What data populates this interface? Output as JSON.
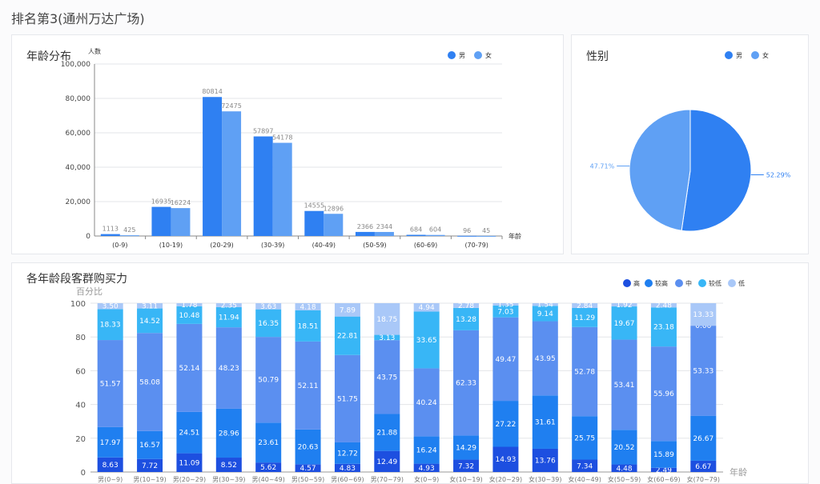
{
  "page": {
    "title": "排名第3(通州万达广场)"
  },
  "colors": {
    "male": "#2f80f2",
    "female": "#5fa0f4",
    "high": "#1d4fe0",
    "mid_high": "#1f7ff0",
    "mid": "#5b8ff0",
    "low_mid": "#38b6f6",
    "low": "#a9c8f8"
  },
  "chart_data": [
    {
      "id": "age",
      "type": "bar",
      "title": "年龄分布",
      "ylabel": "人数",
      "xlabel": "年龄",
      "ylim": [
        0,
        100000
      ],
      "yticks": [
        "0",
        "20,000",
        "40,000",
        "60,000",
        "80,000",
        "100,000"
      ],
      "categories": [
        "(0-9)",
        "(10-19)",
        "(20-29)",
        "(30-39)",
        "(40-49)",
        "(50-59)",
        "(60-69)",
        "(70-79)"
      ],
      "series": [
        {
          "name": "男",
          "values": [
            1113,
            16935,
            80814,
            57897,
            14555,
            2366,
            684,
            96
          ]
        },
        {
          "name": "女",
          "values": [
            425,
            16224,
            72475,
            54178,
            12896,
            2344,
            604,
            45
          ]
        }
      ],
      "legend": "top-right",
      "grid": true
    },
    {
      "id": "gender",
      "type": "pie",
      "title": "性别",
      "slices": [
        {
          "name": "男",
          "value": 52.29,
          "label": "52.29%"
        },
        {
          "name": "女",
          "value": 47.71,
          "label": "47.71%"
        }
      ],
      "legend": "top-right"
    },
    {
      "id": "power",
      "type": "bar",
      "stacked": true,
      "title": "各年龄段客群购买力",
      "ylabel": "百分比",
      "xlabel": "年龄",
      "ylim": [
        0,
        100
      ],
      "yticks": [
        "0",
        "20",
        "40",
        "60",
        "80",
        "100"
      ],
      "categories": [
        "男(0~9)",
        "男(10~19)",
        "男(20~29)",
        "男(30~39)",
        "男(40~49)",
        "男(50~59)",
        "男(60~69)",
        "男(70~79)",
        "女(0~9)",
        "女(10~19)",
        "女(20~29)",
        "女(30~39)",
        "女(40~49)",
        "女(50~59)",
        "女(60~69)",
        "女(70~79)"
      ],
      "series": [
        {
          "name": "高",
          "values": [
            8.63,
            7.72,
            11.09,
            8.52,
            5.62,
            4.57,
            4.83,
            12.49,
            4.93,
            7.32,
            14.93,
            13.76,
            7.34,
            4.48,
            2.49,
            6.67
          ]
        },
        {
          "name": "较高",
          "values": [
            17.97,
            16.57,
            24.51,
            28.96,
            23.61,
            20.63,
            12.72,
            21.88,
            16.24,
            14.29,
            27.22,
            31.61,
            25.75,
            20.52,
            15.89,
            26.67
          ]
        },
        {
          "name": "中",
          "values": [
            51.57,
            58.08,
            52.14,
            48.23,
            50.79,
            52.11,
            51.75,
            43.75,
            40.24,
            62.33,
            49.47,
            43.95,
            52.78,
            53.41,
            55.96,
            53.33
          ]
        },
        {
          "name": "较低",
          "values": [
            18.33,
            14.52,
            10.48,
            11.94,
            16.35,
            18.51,
            22.81,
            3.13,
            33.65,
            13.28,
            7.03,
            9.14,
            11.29,
            19.67,
            23.18,
            0.0
          ]
        },
        {
          "name": "低",
          "values": [
            3.5,
            3.11,
            1.78,
            2.35,
            3.63,
            4.18,
            7.89,
            18.75,
            4.94,
            2.78,
            1.35,
            1.54,
            2.84,
            1.92,
            2.48,
            13.33
          ]
        }
      ],
      "legend": "top-right",
      "grid": true
    }
  ]
}
